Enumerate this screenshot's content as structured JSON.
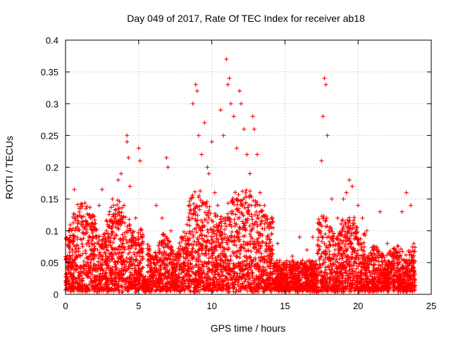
{
  "chart_data": {
    "type": "scatter",
    "title": "Day 049 of 2017, Rate Of TEC Index for receiver ab18",
    "xlabel": "GPS time / hours",
    "ylabel": "ROTI / TECUs",
    "xlim": [
      0,
      25
    ],
    "ylim": [
      0,
      0.4
    ],
    "xticks": [
      "0",
      "5",
      "10",
      "15",
      "20",
      "25"
    ],
    "yticks": [
      "0",
      "0.05",
      "0.1",
      "0.15",
      "0.2",
      "0.25",
      "0.3",
      "0.35",
      "0.4"
    ],
    "grid": true,
    "marker": "+",
    "color": "#ff0000",
    "series": [
      {
        "points": [
          [
            0.2,
            0.02
          ],
          [
            0.4,
            0.04
          ],
          [
            0.6,
            0.05
          ],
          [
            0.6,
            0.165
          ],
          [
            0.8,
            0.09
          ],
          [
            1.0,
            0.06
          ],
          [
            1.2,
            0.11
          ],
          [
            1.4,
            0.135
          ],
          [
            1.7,
            0.12
          ],
          [
            2.0,
            0.08
          ],
          [
            2.3,
            0.14
          ],
          [
            2.5,
            0.165
          ],
          [
            2.8,
            0.1
          ],
          [
            3.2,
            0.15
          ],
          [
            3.4,
            0.12
          ],
          [
            3.6,
            0.18
          ],
          [
            3.8,
            0.19
          ],
          [
            4.0,
            0.14
          ],
          [
            4.2,
            0.25
          ],
          [
            4.2,
            0.24
          ],
          [
            4.3,
            0.215
          ],
          [
            4.4,
            0.17
          ],
          [
            4.6,
            0.09
          ],
          [
            4.8,
            0.12
          ],
          [
            5.0,
            0.23
          ],
          [
            5.1,
            0.21
          ],
          [
            5.2,
            0.08
          ],
          [
            5.5,
            0.02
          ],
          [
            6.0,
            0.05
          ],
          [
            6.2,
            0.14
          ],
          [
            6.6,
            0.12
          ],
          [
            6.9,
            0.215
          ],
          [
            7.0,
            0.2
          ],
          [
            7.2,
            0.1
          ],
          [
            7.5,
            0.06
          ],
          [
            7.9,
            0.09
          ],
          [
            8.3,
            0.11
          ],
          [
            8.7,
            0.3
          ],
          [
            8.9,
            0.33
          ],
          [
            9.0,
            0.32
          ],
          [
            9.1,
            0.25
          ],
          [
            9.3,
            0.22
          ],
          [
            9.5,
            0.27
          ],
          [
            9.7,
            0.2
          ],
          [
            9.8,
            0.19
          ],
          [
            10.0,
            0.24
          ],
          [
            10.2,
            0.16
          ],
          [
            10.4,
            0.14
          ],
          [
            10.6,
            0.29
          ],
          [
            10.8,
            0.25
          ],
          [
            11.0,
            0.37
          ],
          [
            11.1,
            0.33
          ],
          [
            11.2,
            0.34
          ],
          [
            11.3,
            0.3
          ],
          [
            11.5,
            0.28
          ],
          [
            11.7,
            0.23
          ],
          [
            11.9,
            0.32
          ],
          [
            12.0,
            0.3
          ],
          [
            12.2,
            0.26
          ],
          [
            12.4,
            0.22
          ],
          [
            12.6,
            0.19
          ],
          [
            12.7,
            0.14
          ],
          [
            12.8,
            0.28
          ],
          [
            12.9,
            0.26
          ],
          [
            13.1,
            0.22
          ],
          [
            13.3,
            0.16
          ],
          [
            13.6,
            0.14
          ],
          [
            14.0,
            0.11
          ],
          [
            14.5,
            0.08
          ],
          [
            15.0,
            0.05
          ],
          [
            15.5,
            0.06
          ],
          [
            16.0,
            0.09
          ],
          [
            16.5,
            0.07
          ],
          [
            16.9,
            0.09
          ],
          [
            17.3,
            0.1
          ],
          [
            17.5,
            0.21
          ],
          [
            17.6,
            0.28
          ],
          [
            17.7,
            0.34
          ],
          [
            17.8,
            0.33
          ],
          [
            17.9,
            0.25
          ],
          [
            18.2,
            0.15
          ],
          [
            18.6,
            0.12
          ],
          [
            19.0,
            0.15
          ],
          [
            19.2,
            0.16
          ],
          [
            19.4,
            0.18
          ],
          [
            19.6,
            0.17
          ],
          [
            20.0,
            0.14
          ],
          [
            20.3,
            0.12
          ],
          [
            20.6,
            0.1
          ],
          [
            21.0,
            0.07
          ],
          [
            21.5,
            0.13
          ],
          [
            22.0,
            0.08
          ],
          [
            22.5,
            0.07
          ],
          [
            23.0,
            0.13
          ],
          [
            23.3,
            0.16
          ],
          [
            23.6,
            0.14
          ],
          [
            23.8,
            0.08
          ]
        ]
      }
    ]
  }
}
